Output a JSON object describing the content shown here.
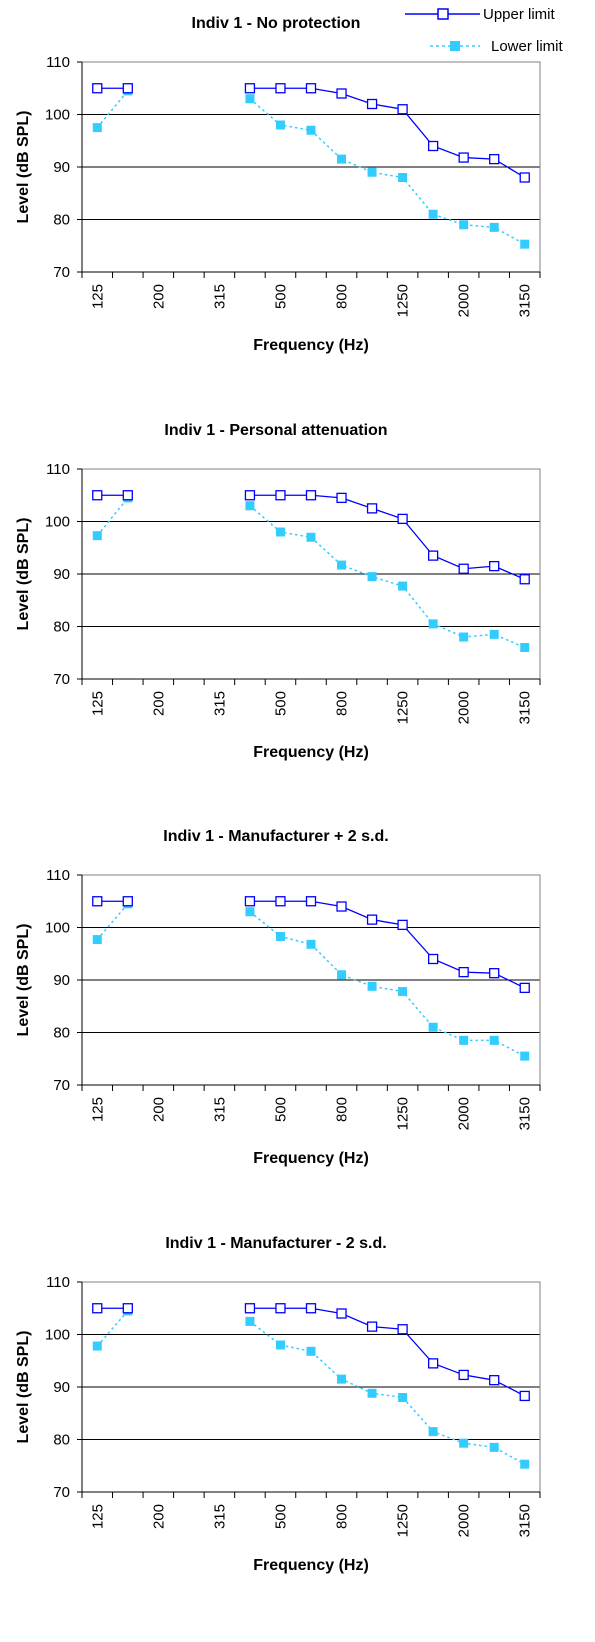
{
  "legend": {
    "upper_label": "Upper limit",
    "lower_label": "Lower limit",
    "upper_color": "#0000ff",
    "lower_color": "#33ccff",
    "placement": "top-right"
  },
  "chart_data": [
    {
      "type": "line",
      "title": "Indiv 1 - No protection",
      "xlabel": "Frequency (Hz)",
      "ylabel": "Level (dB SPL)",
      "ylim": [
        70,
        110
      ],
      "yticks": [
        70,
        80,
        90,
        100,
        110
      ],
      "x_tick_labels": [
        "125",
        "200",
        "315",
        "500",
        "800",
        "1250",
        "2000",
        "3150"
      ],
      "x": [
        125,
        160,
        200,
        250,
        315,
        400,
        500,
        630,
        800,
        1000,
        1250,
        1600,
        2000,
        2500,
        3150
      ],
      "grid": "horizontal",
      "series": [
        {
          "name": "Upper limit",
          "style": "solid-hollow-square",
          "values": [
            105,
            105,
            null,
            null,
            null,
            105,
            105,
            105,
            104,
            102,
            101,
            94,
            91.8,
            91.5,
            88
          ]
        },
        {
          "name": "Lower limit",
          "style": "dotted-filled-square",
          "values": [
            97.5,
            104.5,
            null,
            null,
            null,
            103,
            98,
            97,
            91.5,
            89,
            88,
            81,
            79,
            78.5,
            75.3
          ]
        }
      ]
    },
    {
      "type": "line",
      "title": "Indiv 1 - Personal attenuation",
      "xlabel": "Frequency (Hz)",
      "ylabel": "Level (dB SPL)",
      "ylim": [
        70,
        110
      ],
      "yticks": [
        70,
        80,
        90,
        100,
        110
      ],
      "x_tick_labels": [
        "125",
        "200",
        "315",
        "500",
        "800",
        "1250",
        "2000",
        "3150"
      ],
      "x": [
        125,
        160,
        200,
        250,
        315,
        400,
        500,
        630,
        800,
        1000,
        1250,
        1600,
        2000,
        2500,
        3150
      ],
      "grid": "horizontal",
      "series": [
        {
          "name": "Upper limit",
          "style": "solid-hollow-square",
          "values": [
            105,
            105,
            null,
            null,
            null,
            105,
            105,
            105,
            104.5,
            102.5,
            100.5,
            93.5,
            91,
            91.5,
            89
          ]
        },
        {
          "name": "Lower limit",
          "style": "dotted-filled-square",
          "values": [
            97.3,
            104.5,
            null,
            null,
            null,
            103,
            98,
            97,
            91.7,
            89.5,
            87.7,
            80.5,
            78,
            78.5,
            76
          ]
        }
      ]
    },
    {
      "type": "line",
      "title": "Indiv 1 - Manufacturer + 2 s.d.",
      "xlabel": "Frequency (Hz)",
      "ylabel": "Level (dB SPL)",
      "ylim": [
        70,
        110
      ],
      "yticks": [
        70,
        80,
        90,
        100,
        110
      ],
      "x_tick_labels": [
        "125",
        "200",
        "315",
        "500",
        "800",
        "1250",
        "2000",
        "3150"
      ],
      "x": [
        125,
        160,
        200,
        250,
        315,
        400,
        500,
        630,
        800,
        1000,
        1250,
        1600,
        2000,
        2500,
        3150
      ],
      "grid": "horizontal",
      "series": [
        {
          "name": "Upper limit",
          "style": "solid-hollow-square",
          "values": [
            105,
            105,
            null,
            null,
            null,
            105,
            105,
            105,
            104,
            101.5,
            100.5,
            94,
            91.5,
            91.3,
            88.5
          ]
        },
        {
          "name": "Lower limit",
          "style": "dotted-filled-square",
          "values": [
            97.7,
            104.5,
            null,
            null,
            null,
            103,
            98.3,
            96.8,
            91,
            88.8,
            87.8,
            81,
            78.5,
            78.5,
            75.5
          ]
        }
      ]
    },
    {
      "type": "line",
      "title": "Indiv 1 - Manufacturer - 2 s.d.",
      "xlabel": "Frequency (Hz)",
      "ylabel": "Level (dB SPL)",
      "ylim": [
        70,
        110
      ],
      "yticks": [
        70,
        80,
        90,
        100,
        110
      ],
      "x_tick_labels": [
        "125",
        "200",
        "315",
        "500",
        "800",
        "1250",
        "2000",
        "3150"
      ],
      "x": [
        125,
        160,
        200,
        250,
        315,
        400,
        500,
        630,
        800,
        1000,
        1250,
        1600,
        2000,
        2500,
        3150
      ],
      "grid": "horizontal",
      "series": [
        {
          "name": "Upper limit",
          "style": "solid-hollow-square",
          "values": [
            105,
            105,
            null,
            null,
            null,
            105,
            105,
            105,
            104,
            101.5,
            101,
            94.5,
            92.3,
            91.3,
            88.3
          ]
        },
        {
          "name": "Lower limit",
          "style": "dotted-filled-square",
          "values": [
            97.8,
            104.5,
            null,
            null,
            null,
            102.5,
            98,
            96.8,
            91.5,
            88.8,
            88,
            81.5,
            79.3,
            78.5,
            75.3
          ]
        }
      ]
    }
  ]
}
